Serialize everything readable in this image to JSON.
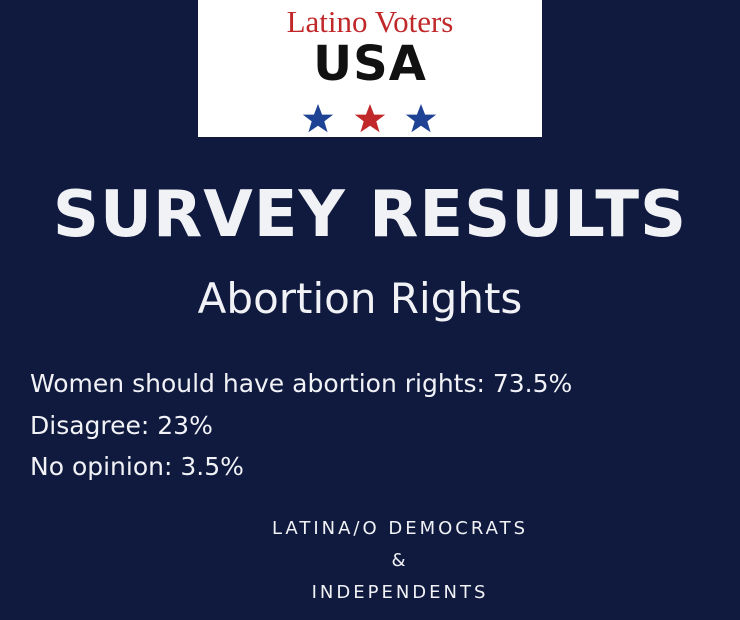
{
  "logo": {
    "top": "Latino Voters",
    "main": "USA"
  },
  "title": "SURVEY RESULTS",
  "subtitle": "Abortion Rights",
  "results": [
    "Women should have abortion rights: 73.5%",
    "Disagree: 23%",
    "No opinion: 3.5%"
  ],
  "footer": [
    "LATINA/O DEMOCRATS",
    "&",
    "INDEPENDENTS"
  ]
}
